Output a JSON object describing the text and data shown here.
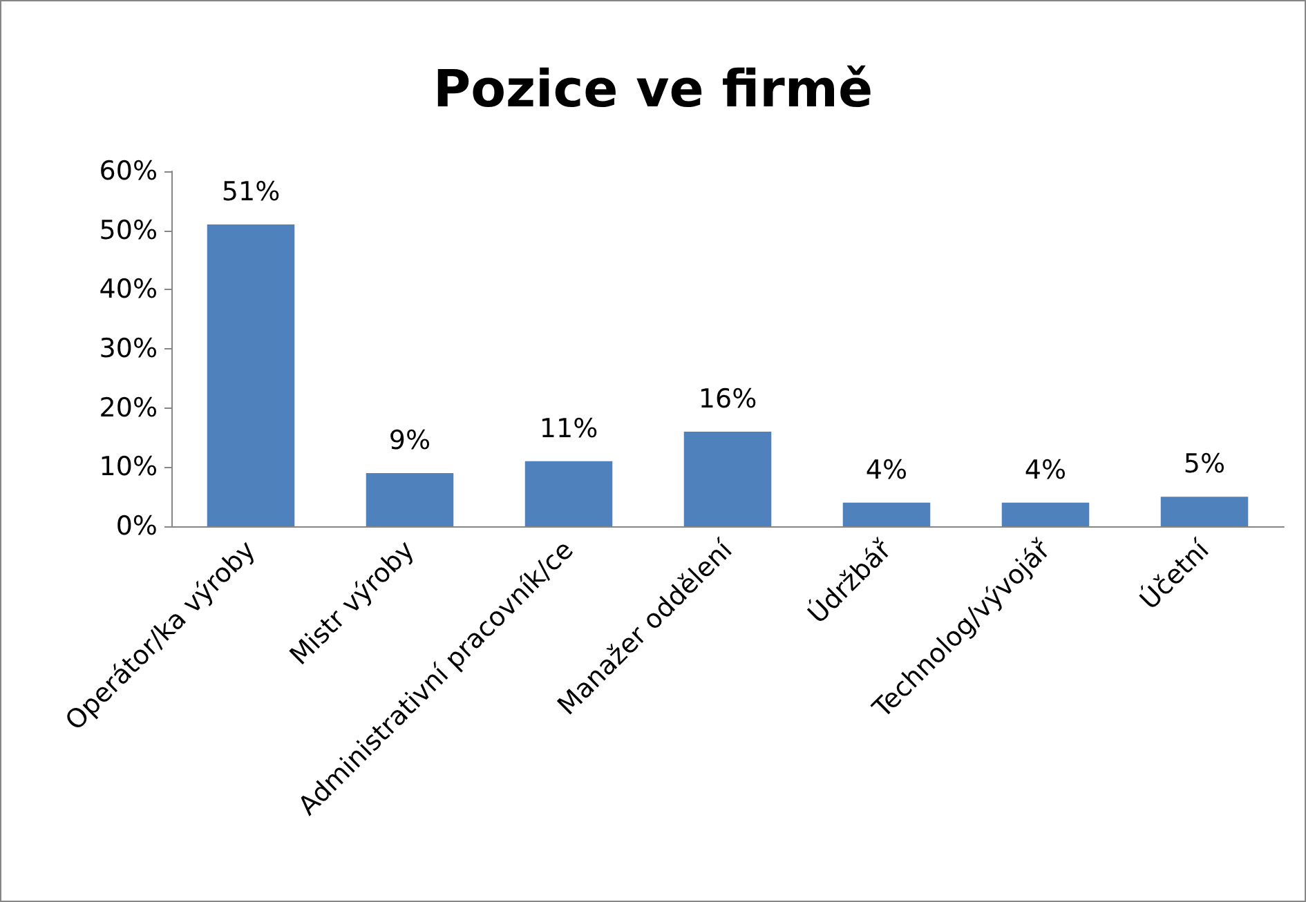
{
  "chart_data": {
    "type": "bar",
    "title": "Pozice ve firmě",
    "categories": [
      "Operátor/ka výroby",
      "Mistr výroby",
      "Administrativní pracovník/ce",
      "Manažer oddělení",
      "Údržbář",
      "Technolog/vývojář",
      "Účetní"
    ],
    "values": [
      51,
      9,
      11,
      16,
      4,
      4,
      5
    ],
    "value_labels": [
      "51%",
      "9%",
      "11%",
      "16%",
      "4%",
      "4%",
      "5%"
    ],
    "color": "#4f81bd",
    "ylim": [
      0,
      60
    ],
    "yticks": [
      {
        "value": 0,
        "label": "0%"
      },
      {
        "value": 10,
        "label": "10%"
      },
      {
        "value": 20,
        "label": "20%"
      },
      {
        "value": 30,
        "label": "30%"
      },
      {
        "value": 40,
        "label": "40%"
      },
      {
        "value": 50,
        "label": "50%"
      },
      {
        "value": 60,
        "label": "60%"
      }
    ],
    "grid": false
  }
}
